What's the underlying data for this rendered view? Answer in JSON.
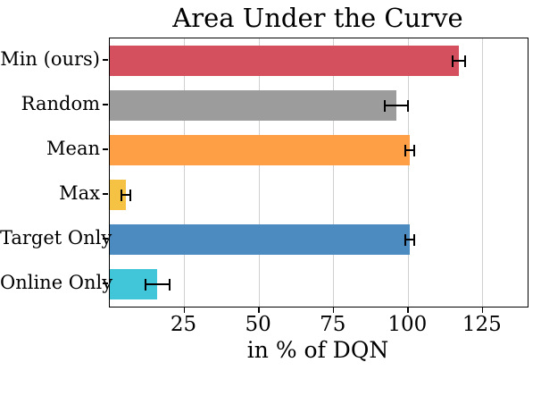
{
  "chart_data": {
    "type": "bar",
    "orientation": "horizontal",
    "title": "Area Under the Curve",
    "xlabel": "in % of DQN",
    "categories": [
      "Min (ours)",
      "Random",
      "Mean",
      "Max",
      "Target Only",
      "Online Only"
    ],
    "values": [
      117,
      96,
      100.5,
      5.5,
      100.5,
      16
    ],
    "errors": [
      2,
      4,
      1.5,
      1.5,
      1.5,
      4
    ],
    "colors": [
      "#d4505f",
      "#9c9c9c",
      "#ff9f45",
      "#f6c244",
      "#4b8bbf",
      "#41c6d9"
    ],
    "error_color": "#000000",
    "xlim": [
      0,
      140
    ],
    "xticks": [
      25,
      50,
      75,
      100,
      125
    ],
    "grid": true,
    "legend": null
  }
}
